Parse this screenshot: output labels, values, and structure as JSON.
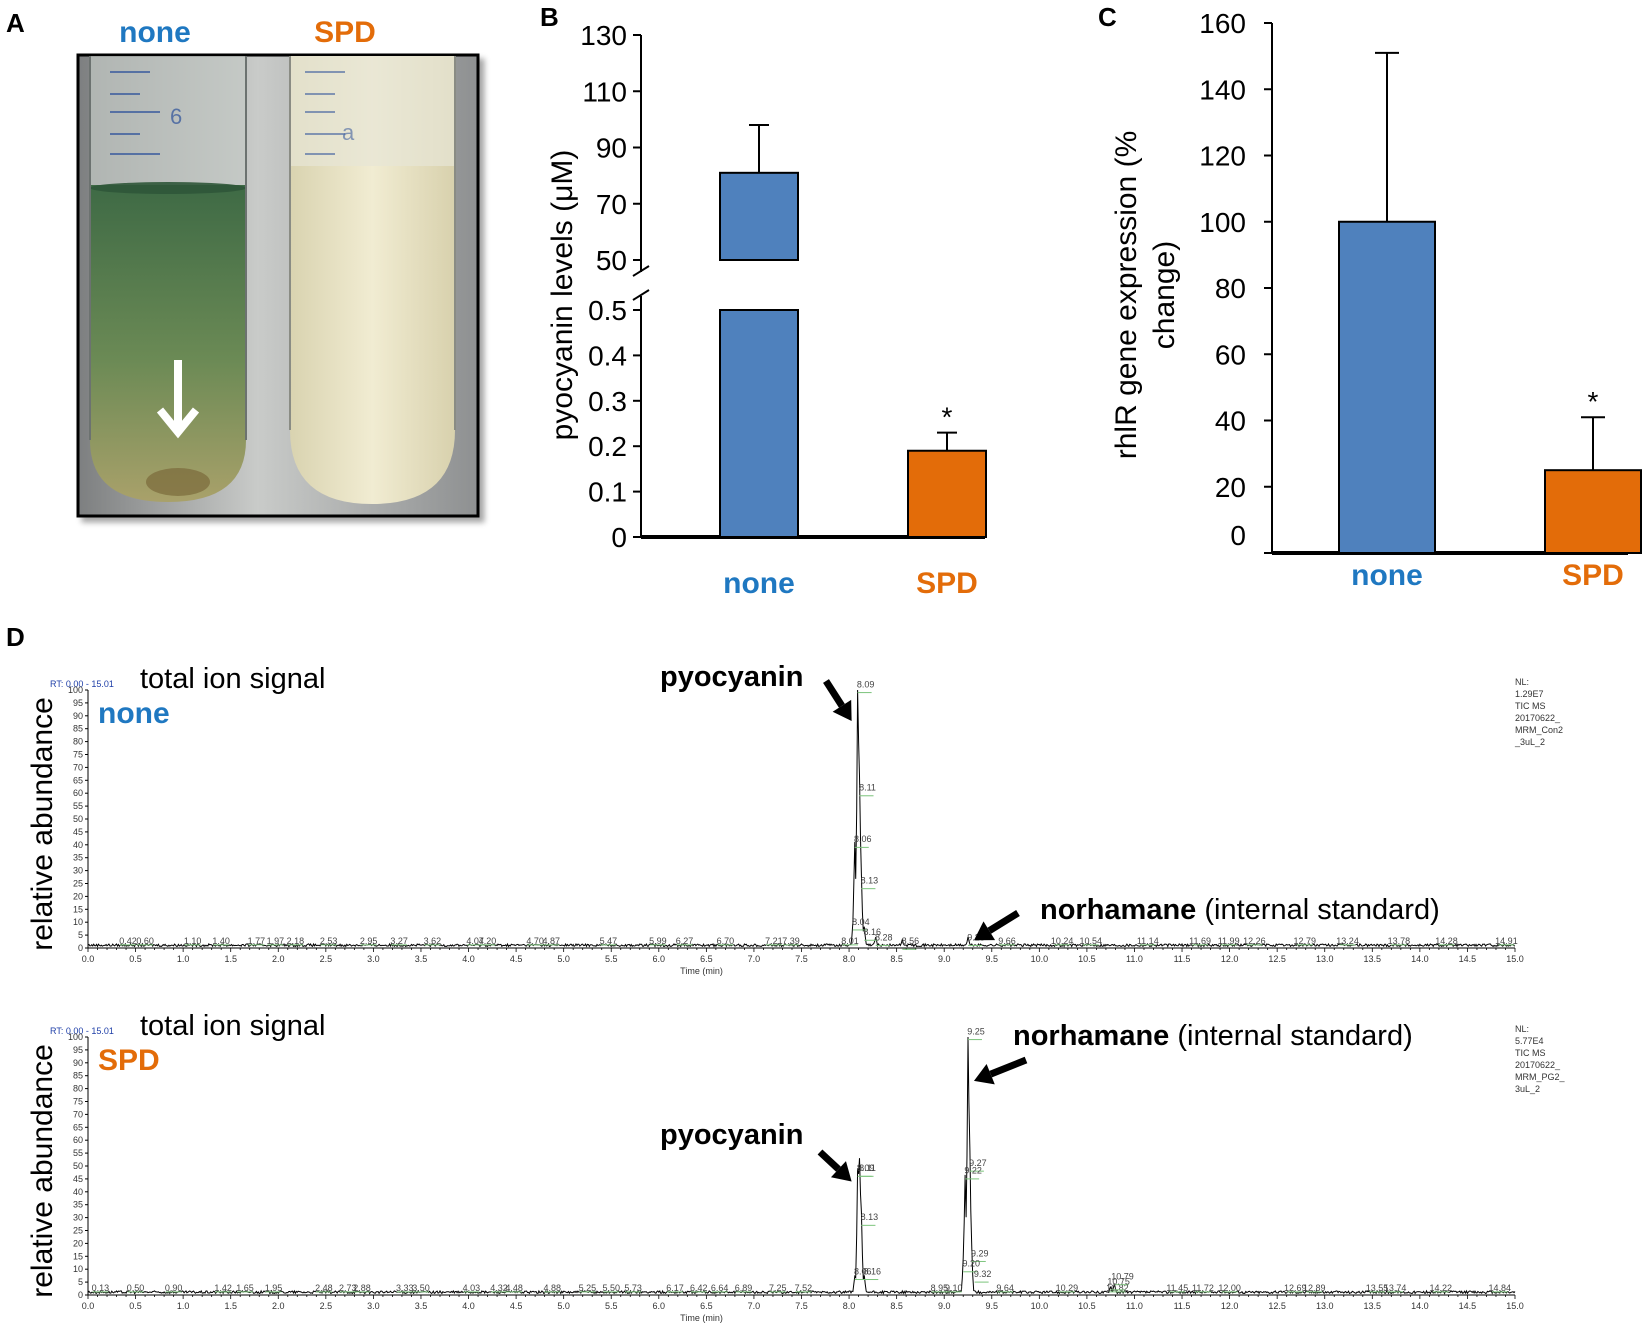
{
  "colors": {
    "none": "#4f81bd",
    "spd": "#e36c09",
    "none_text": "#1f78c1",
    "spd_text": "#e36c09"
  },
  "panel_a": {
    "label": "A",
    "tube_labels": [
      "none",
      "SPD"
    ],
    "arrow_icon": "down-arrow-icon"
  },
  "chart_data": [
    {
      "id": "B",
      "type": "bar",
      "panel_label": "B",
      "ylabel": "pyocyanin levels (μM)",
      "categories": [
        "none",
        "SPD"
      ],
      "values": [
        81,
        0.19
      ],
      "errors": [
        17,
        0.04
      ],
      "axis_break": true,
      "upper_range": [
        50,
        130
      ],
      "upper_ticks": [
        "50",
        "70",
        "90",
        "110",
        "130"
      ],
      "lower_range": [
        0,
        0.5
      ],
      "lower_ticks": [
        "0",
        "0.1",
        "0.2",
        "0.3",
        "0.4",
        "0.5"
      ],
      "significance": [
        "",
        "*"
      ]
    },
    {
      "id": "C",
      "type": "bar",
      "panel_label": "C",
      "ylabel_line1": "rhlR gene expression (%",
      "ylabel_line2": "change)",
      "categories": [
        "none",
        "SPD"
      ],
      "values": [
        100,
        25
      ],
      "errors": [
        51,
        16
      ],
      "ylim": [
        0,
        160
      ],
      "yticks": [
        "0",
        "20",
        "40",
        "60",
        "80",
        "100",
        "120",
        "140",
        "160"
      ],
      "significance": [
        "",
        "*"
      ]
    },
    {
      "id": "D1",
      "type": "line",
      "panel_label": "D",
      "title": "total ion signal",
      "sample": "none",
      "ylabel": "relative abundance",
      "xlabel": "Time (min)",
      "rt_range": "RT: 0.00 - 15.01",
      "xlim": [
        0,
        15
      ],
      "ylim": [
        0,
        100
      ],
      "nl_info": [
        "NL:",
        "1.29E7",
        "TIC MS",
        "20170622_",
        "MRM_Con2",
        "_3uL_2"
      ],
      "peaks": [
        {
          "rt": 8.09,
          "height": 100
        },
        {
          "rt": 8.11,
          "height": 58
        },
        {
          "rt": 8.06,
          "height": 39
        },
        {
          "rt": 8.13,
          "height": 24
        },
        {
          "rt": 8.04,
          "height": 7
        },
        {
          "rt": 8.16,
          "height": 7
        },
        {
          "rt": 9.25,
          "height": 3
        },
        {
          "rt": 8.28,
          "height": 3
        },
        {
          "rt": 8.56,
          "height": 2
        }
      ],
      "labels": [
        {
          "rt": 0.42,
          "text": "0.42"
        },
        {
          "rt": 0.6,
          "text": "0.60"
        },
        {
          "rt": 1.1,
          "text": "1.10"
        },
        {
          "rt": 1.4,
          "text": "1.40"
        },
        {
          "rt": 1.77,
          "text": "1.77"
        },
        {
          "rt": 1.97,
          "text": "1.97"
        },
        {
          "rt": 2.18,
          "text": "2.18"
        },
        {
          "rt": 2.53,
          "text": "2.53"
        },
        {
          "rt": 2.95,
          "text": "2.95"
        },
        {
          "rt": 3.27,
          "text": "3.27"
        },
        {
          "rt": 3.62,
          "text": "3.62"
        },
        {
          "rt": 4.07,
          "text": "4.07"
        },
        {
          "rt": 4.2,
          "text": "4.20"
        },
        {
          "rt": 4.7,
          "text": "4.70"
        },
        {
          "rt": 4.87,
          "text": "4.87"
        },
        {
          "rt": 5.47,
          "text": "5.47"
        },
        {
          "rt": 5.99,
          "text": "5.99"
        },
        {
          "rt": 6.27,
          "text": "6.27"
        },
        {
          "rt": 6.7,
          "text": "6.70"
        },
        {
          "rt": 7.21,
          "text": "7.21"
        },
        {
          "rt": 7.39,
          "text": "7.39"
        },
        {
          "rt": 8.01,
          "text": "8.01"
        },
        {
          "rt": 9.66,
          "text": "9.66"
        },
        {
          "rt": 10.24,
          "text": "10.24"
        },
        {
          "rt": 10.54,
          "text": "10.54"
        },
        {
          "rt": 11.14,
          "text": "11.14"
        },
        {
          "rt": 11.69,
          "text": "11.69"
        },
        {
          "rt": 11.99,
          "text": "11.99"
        },
        {
          "rt": 12.26,
          "text": "12.26"
        },
        {
          "rt": 12.79,
          "text": "12.79"
        },
        {
          "rt": 13.24,
          "text": "13.24"
        },
        {
          "rt": 13.78,
          "text": "13.78"
        },
        {
          "rt": 14.28,
          "text": "14.28"
        },
        {
          "rt": 14.91,
          "text": "14.91"
        }
      ],
      "peak_labels": [
        {
          "rt": 8.09,
          "y": 101,
          "text": "8.09"
        },
        {
          "rt": 8.11,
          "y": 61,
          "text": "8.11"
        },
        {
          "rt": 8.06,
          "y": 41,
          "text": "8.06"
        },
        {
          "rt": 8.13,
          "y": 25,
          "text": "8.13"
        },
        {
          "rt": 8.04,
          "y": 9,
          "text": "8.04"
        },
        {
          "rt": 8.16,
          "y": 5,
          "text": "8.16"
        },
        {
          "rt": 8.28,
          "y": 3,
          "text": "8.28"
        },
        {
          "rt": 8.56,
          "y": 1.5,
          "text": "8.56"
        },
        {
          "rt": 9.25,
          "y": 3,
          "text": "9.25"
        }
      ],
      "annotations": [
        {
          "bold": "pyocyanin",
          "rest": "",
          "target_rt": 8.09,
          "target_y": 88
        },
        {
          "bold": "norhamane",
          "rest": " (internal standard)",
          "target_rt": 9.25,
          "target_y": 3
        }
      ]
    },
    {
      "id": "D2",
      "type": "line",
      "title": "total ion signal",
      "sample": "SPD",
      "ylabel": "relative abundance",
      "xlabel": "Time (min)",
      "rt_range": "RT: 0.00 - 15.01",
      "xlim": [
        0,
        15
      ],
      "ylim": [
        0,
        100
      ],
      "nl_info": [
        "NL:",
        "5.77E4",
        "TIC MS",
        "20170622_",
        "MRM_PG2_",
        "3uL_2"
      ],
      "peaks": [
        {
          "rt": 9.25,
          "height": 100
        },
        {
          "rt": 9.27,
          "height": 48
        },
        {
          "rt": 9.22,
          "height": 45
        },
        {
          "rt": 9.2,
          "height": 10
        },
        {
          "rt": 9.29,
          "height": 14
        },
        {
          "rt": 8.11,
          "height": 47
        },
        {
          "rt": 8.09,
          "height": 45
        },
        {
          "rt": 8.13,
          "height": 28
        },
        {
          "rt": 8.06,
          "height": 6
        },
        {
          "rt": 8.16,
          "height": 6
        },
        {
          "rt": 10.79,
          "height": 3
        },
        {
          "rt": 10.75,
          "height": 2
        }
      ],
      "labels": [
        {
          "rt": 0.13,
          "text": "0.13"
        },
        {
          "rt": 0.5,
          "text": "0.50"
        },
        {
          "rt": 0.9,
          "text": "0.90"
        },
        {
          "rt": 1.42,
          "text": "1.42"
        },
        {
          "rt": 1.65,
          "text": "1.65"
        },
        {
          "rt": 1.95,
          "text": "1.95"
        },
        {
          "rt": 2.48,
          "text": "2.48"
        },
        {
          "rt": 2.73,
          "text": "2.73"
        },
        {
          "rt": 2.88,
          "text": "2.88"
        },
        {
          "rt": 3.33,
          "text": "3.33"
        },
        {
          "rt": 3.5,
          "text": "3.50"
        },
        {
          "rt": 4.03,
          "text": "4.03"
        },
        {
          "rt": 4.32,
          "text": "4.32"
        },
        {
          "rt": 4.48,
          "text": "4.48"
        },
        {
          "rt": 4.88,
          "text": "4.88"
        },
        {
          "rt": 5.25,
          "text": "5.25"
        },
        {
          "rt": 5.5,
          "text": "5.50"
        },
        {
          "rt": 5.73,
          "text": "5.73"
        },
        {
          "rt": 6.17,
          "text": "6.17"
        },
        {
          "rt": 6.42,
          "text": "6.42"
        },
        {
          "rt": 6.64,
          "text": "6.64"
        },
        {
          "rt": 6.89,
          "text": "6.89"
        },
        {
          "rt": 7.25,
          "text": "7.25"
        },
        {
          "rt": 7.52,
          "text": "7.52"
        },
        {
          "rt": 8.95,
          "text": "8.95"
        },
        {
          "rt": 9.1,
          "text": "9.10"
        },
        {
          "rt": 9.64,
          "text": "9.64"
        },
        {
          "rt": 10.29,
          "text": "10.29"
        },
        {
          "rt": 10.82,
          "text": "10.82"
        },
        {
          "rt": 11.45,
          "text": "11.45"
        },
        {
          "rt": 11.72,
          "text": "11.72"
        },
        {
          "rt": 12.0,
          "text": "12.00"
        },
        {
          "rt": 12.69,
          "text": "12.69"
        },
        {
          "rt": 12.89,
          "text": "12.89"
        },
        {
          "rt": 13.55,
          "text": "13.55"
        },
        {
          "rt": 13.74,
          "text": "13.74"
        },
        {
          "rt": 14.22,
          "text": "14.22"
        },
        {
          "rt": 14.84,
          "text": "14.84"
        }
      ],
      "peak_labels": [
        {
          "rt": 9.25,
          "y": 101,
          "text": "9.25"
        },
        {
          "rt": 9.27,
          "y": 50,
          "text": "9.27"
        },
        {
          "rt": 9.22,
          "y": 47,
          "text": "9.22"
        },
        {
          "rt": 9.29,
          "y": 15,
          "text": "9.29"
        },
        {
          "rt": 9.2,
          "y": 11,
          "text": "9.20"
        },
        {
          "rt": 9.32,
          "y": 7,
          "text": "9.32"
        },
        {
          "rt": 8.11,
          "y": 48,
          "text": "8.11"
        },
        {
          "rt": 8.09,
          "y": 48,
          "text": "8.09"
        },
        {
          "rt": 8.13,
          "y": 29,
          "text": "8.13"
        },
        {
          "rt": 8.06,
          "y": 8,
          "text": "8.06"
        },
        {
          "rt": 8.16,
          "y": 8,
          "text": "8.16"
        },
        {
          "rt": 10.79,
          "y": 6,
          "text": "10.79"
        },
        {
          "rt": 10.75,
          "y": 4,
          "text": "10.75"
        }
      ],
      "annotations": [
        {
          "bold": "norhamane",
          "rest": " (internal standard)",
          "target_rt": 9.25,
          "target_y": 83
        },
        {
          "bold": "pyocyanin",
          "rest": "",
          "target_rt": 8.09,
          "target_y": 44
        }
      ]
    }
  ]
}
